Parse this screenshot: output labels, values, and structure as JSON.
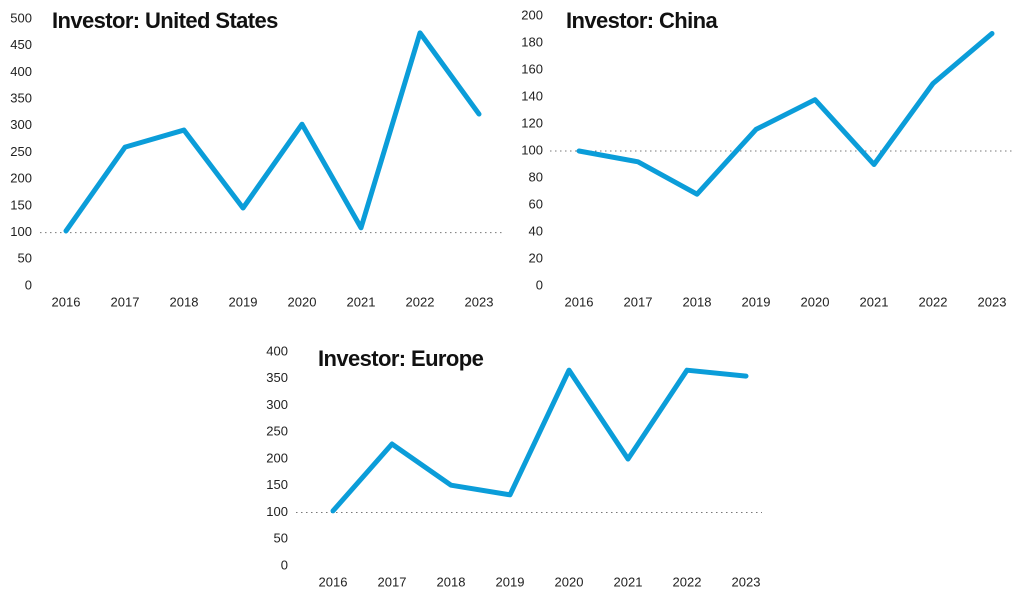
{
  "chart_data": [
    {
      "type": "line",
      "title": "Investor: United States",
      "categories": [
        "2016",
        "2017",
        "2018",
        "2019",
        "2020",
        "2021",
        "2022",
        "2023"
      ],
      "values": [
        103,
        260,
        292,
        146,
        303,
        109,
        474,
        322
      ],
      "color": "#0b9dd9",
      "ylim": [
        0,
        500
      ],
      "yticks": [
        0,
        50,
        100,
        150,
        200,
        250,
        300,
        350,
        400,
        450,
        500
      ],
      "reference_line": 100
    },
    {
      "type": "line",
      "title": "Investor: China",
      "categories": [
        "2016",
        "2017",
        "2018",
        "2019",
        "2020",
        "2021",
        "2022",
        "2023"
      ],
      "values": [
        100,
        92,
        68,
        116,
        138,
        90,
        150,
        187
      ],
      "color": "#0b9dd9",
      "ylim": [
        0,
        200
      ],
      "yticks": [
        0,
        20,
        40,
        60,
        80,
        100,
        120,
        140,
        160,
        180,
        200
      ],
      "reference_line": 100
    },
    {
      "type": "line",
      "title": "Investor: Europe",
      "categories": [
        "2016",
        "2017",
        "2018",
        "2019",
        "2020",
        "2021",
        "2022",
        "2023"
      ],
      "values": [
        103,
        228,
        151,
        133,
        366,
        200,
        366,
        355
      ],
      "color": "#0b9dd9",
      "ylim": [
        0,
        400
      ],
      "yticks": [
        0,
        50,
        100,
        150,
        200,
        250,
        300,
        350,
        400
      ],
      "reference_line": 100
    }
  ]
}
